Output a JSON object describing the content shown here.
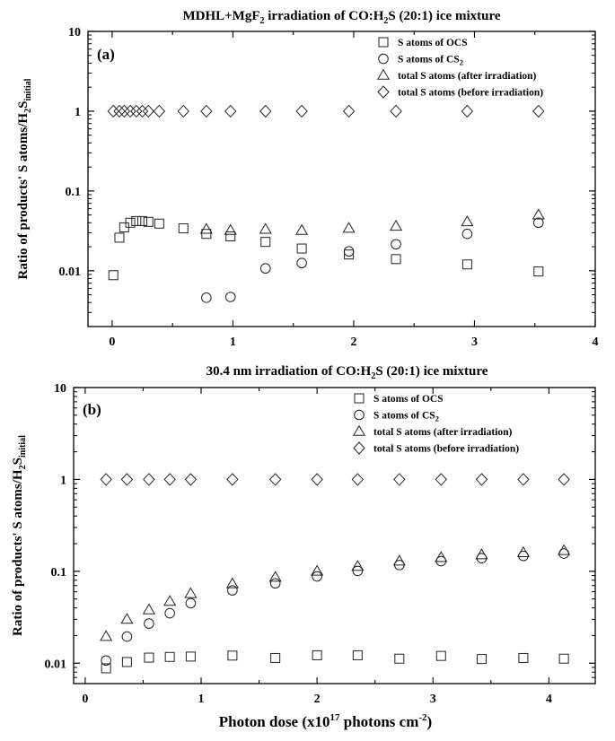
{
  "chart_data": [
    {
      "type": "scatter",
      "panel_label": "(a)",
      "title": {
        "main": "MDHL+MgF",
        "sub": "2",
        "rest": " irradiation of CO:H",
        "sub2": "2",
        "rest2": "S (20:1) ice mixture"
      },
      "ylabel": {
        "main": "Ratio of products' S atoms/H",
        "sub": "2",
        "rest": "S",
        "sub2": "initial"
      },
      "xlabel": "",
      "xlim": [
        -0.2,
        4
      ],
      "ylim": [
        0.002,
        10
      ],
      "yscale": "log",
      "x_ticks": [
        "0",
        "1",
        "2",
        "3",
        "4"
      ],
      "y_ticks": [
        "0.01",
        "0.1",
        "1",
        "10"
      ],
      "grid": false,
      "legend_position": "top-right",
      "series": [
        {
          "name": "S atoms of OCS",
          "sub": "",
          "marker": "square",
          "x": [
            0.01,
            0.06,
            0.1,
            0.15,
            0.2,
            0.25,
            0.3,
            0.39,
            0.59,
            0.78,
            0.98,
            1.27,
            1.57,
            1.96,
            2.35,
            2.94,
            3.53
          ],
          "y": [
            0.0088,
            0.026,
            0.035,
            0.04,
            0.042,
            0.042,
            0.041,
            0.039,
            0.034,
            0.029,
            0.027,
            0.023,
            0.019,
            0.016,
            0.014,
            0.012,
            0.0098
          ]
        },
        {
          "name": "S atoms of CS",
          "sub": "2",
          "marker": "circle",
          "x": [
            0.78,
            0.98,
            1.27,
            1.57,
            1.96,
            2.35,
            2.94,
            3.53
          ],
          "y": [
            0.0046,
            0.0047,
            0.0107,
            0.0125,
            0.0175,
            0.0215,
            0.029,
            0.04
          ]
        },
        {
          "name": "total S atoms (after irradiation)",
          "sub": "",
          "marker": "triangle",
          "x": [
            0.78,
            0.98,
            1.27,
            1.57,
            1.96,
            2.35,
            2.94,
            3.53
          ],
          "y": [
            0.033,
            0.032,
            0.033,
            0.032,
            0.034,
            0.036,
            0.041,
            0.05
          ]
        },
        {
          "name": "total S atoms (before irradiation)",
          "sub": "",
          "marker": "diamond",
          "x": [
            0.01,
            0.06,
            0.1,
            0.15,
            0.2,
            0.25,
            0.3,
            0.39,
            0.59,
            0.78,
            0.98,
            1.27,
            1.57,
            1.96,
            2.35,
            2.94,
            3.53
          ],
          "y": [
            1,
            1,
            1,
            1,
            1,
            1,
            1,
            1,
            1,
            1,
            1,
            1,
            1,
            1,
            1,
            1,
            1
          ]
        }
      ]
    },
    {
      "type": "scatter",
      "panel_label": "(b)",
      "title": {
        "main": "30.4 nm irradiation of CO:H",
        "sub": "2",
        "rest": "S (20:1) ice mixture",
        "sub2": "",
        "rest2": ""
      },
      "ylabel": {
        "main": "Ratio of products' S atoms/H",
        "sub": "2",
        "rest": "S",
        "sub2": "initial"
      },
      "xlabel": {
        "main": "Photon dose (x10",
        "sup": "17",
        "mid": " photons cm",
        "sup2": "-2",
        "end": ")"
      },
      "xlim": [
        -0.1,
        4.4
      ],
      "ylim": [
        0.006,
        10
      ],
      "yscale": "log",
      "x_ticks": [
        "0",
        "1",
        "2",
        "3",
        "4"
      ],
      "y_ticks": [
        "0.01",
        "0.1",
        "1",
        "10"
      ],
      "grid": false,
      "legend_position": "top-right",
      "series": [
        {
          "name": "S atoms of OCS",
          "sub": "",
          "marker": "square",
          "x": [
            0.18,
            0.36,
            0.55,
            0.73,
            0.91,
            1.27,
            1.64,
            2.0,
            2.35,
            2.71,
            3.07,
            3.42,
            3.78,
            4.13
          ],
          "y": [
            0.0088,
            0.0103,
            0.0115,
            0.0117,
            0.0118,
            0.0121,
            0.0114,
            0.0122,
            0.0122,
            0.0112,
            0.012,
            0.0111,
            0.0114,
            0.0112
          ]
        },
        {
          "name": "S atoms of CS",
          "sub": "2",
          "marker": "circle",
          "x": [
            0.18,
            0.36,
            0.55,
            0.73,
            0.91,
            1.27,
            1.64,
            2.0,
            2.35,
            2.71,
            3.07,
            3.42,
            3.78,
            4.13
          ],
          "y": [
            0.0107,
            0.0195,
            0.027,
            0.035,
            0.045,
            0.062,
            0.074,
            0.088,
            0.101,
            0.117,
            0.129,
            0.139,
            0.147,
            0.156
          ]
        },
        {
          "name": "total S atoms (after irradiation)",
          "sub": "",
          "marker": "triangle",
          "x": [
            0.18,
            0.36,
            0.55,
            0.73,
            0.91,
            1.27,
            1.64,
            2.0,
            2.35,
            2.71,
            3.07,
            3.42,
            3.78,
            4.13
          ],
          "y": [
            0.0195,
            0.03,
            0.038,
            0.047,
            0.057,
            0.073,
            0.086,
            0.1,
            0.113,
            0.129,
            0.141,
            0.151,
            0.159,
            0.168
          ]
        },
        {
          "name": "total S atoms (before irradiation)",
          "sub": "",
          "marker": "diamond",
          "x": [
            0.18,
            0.36,
            0.55,
            0.73,
            0.91,
            1.27,
            1.64,
            2.0,
            2.35,
            2.71,
            3.07,
            3.42,
            3.78,
            4.13
          ],
          "y": [
            1,
            1,
            1,
            1,
            1,
            1,
            1,
            1,
            1,
            1,
            1,
            1,
            1,
            1
          ]
        }
      ]
    }
  ]
}
